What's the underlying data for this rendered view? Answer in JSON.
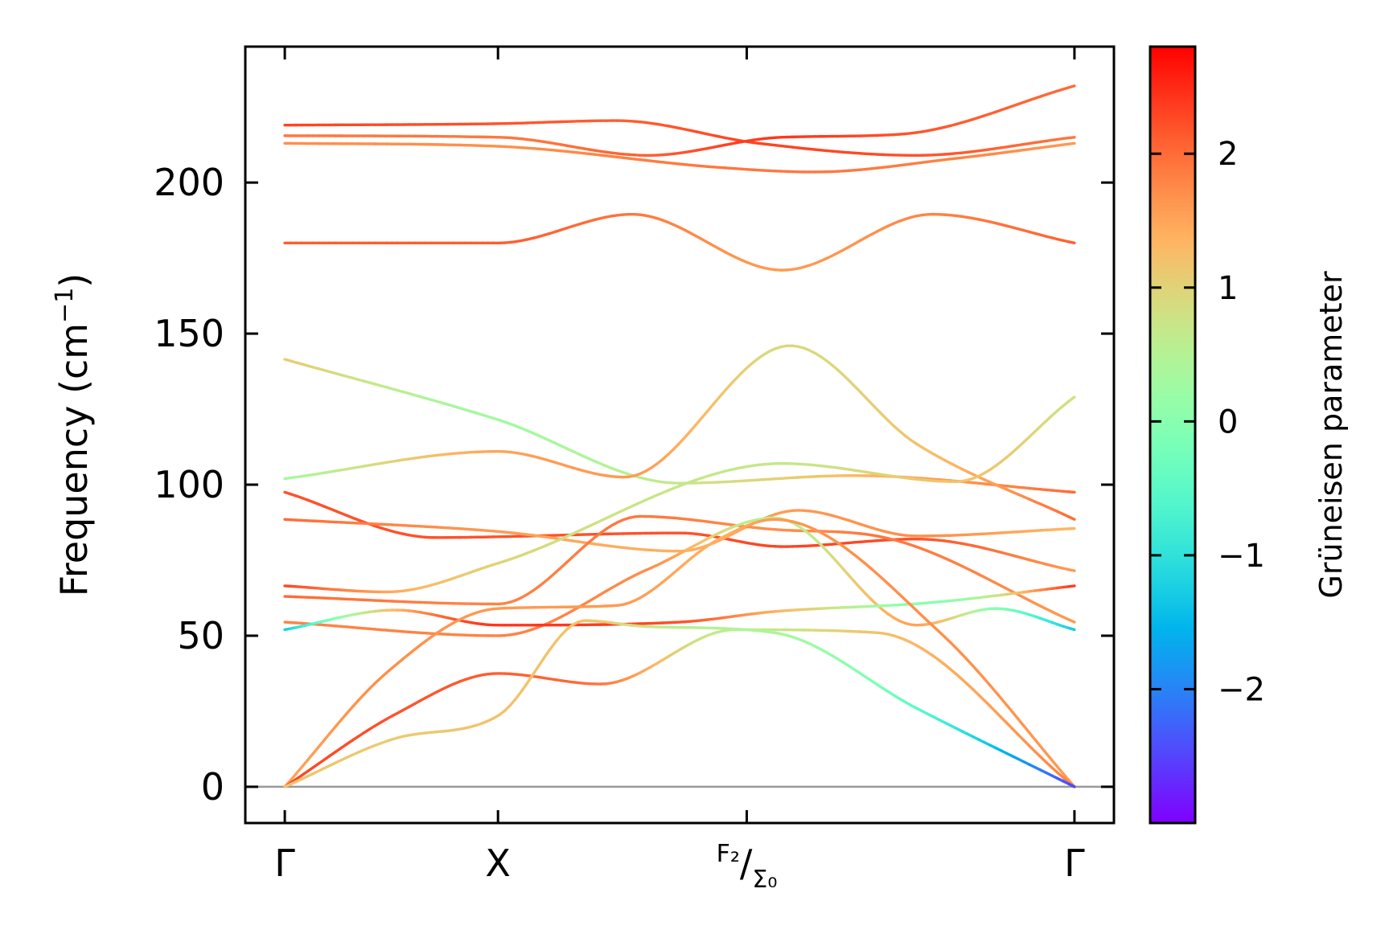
{
  "chart_data": {
    "type": "line",
    "ylabel_main": "Frequency (cm",
    "ylabel_sup": "−1",
    "ylabel_close": ")",
    "ylim": [
      -12,
      245
    ],
    "yticks": [
      0,
      50,
      100,
      150,
      200
    ],
    "ytick_labels": [
      "0",
      "50",
      "100",
      "150",
      "200"
    ],
    "xlim": [
      -0.05,
      1.05
    ],
    "high_symmetry_points": [
      {
        "position": 0.0,
        "label": "Γ",
        "sub": "",
        "sub2": ""
      },
      {
        "position": 0.27,
        "label": "X",
        "sub": "",
        "sub2": ""
      },
      {
        "position": 0.585,
        "label": "",
        "sub": "F₂",
        "sub2": "Σ₀",
        "slash": "/"
      },
      {
        "position": 1.0,
        "label": "Γ",
        "sub": "",
        "sub2": ""
      }
    ],
    "zero_line_color": "#999999",
    "grid": false,
    "colorbar": {
      "title": "Grüneisen parameter",
      "range": [
        -3.0,
        2.8
      ],
      "ticks": [
        -2,
        -1,
        0,
        1,
        2
      ],
      "tick_labels": [
        "−2",
        "−1",
        "0",
        "1",
        "2"
      ],
      "colormap": "rainbow"
    },
    "series": [
      {
        "points": [
          [
            0,
            219,
            2.3
          ],
          [
            0.27,
            219.5,
            2.2
          ],
          [
            0.42,
            220.5,
            2.1
          ],
          [
            0.6,
            213,
            2.3
          ],
          [
            0.8,
            209,
            2.2
          ],
          [
            1.0,
            215,
            1.9
          ]
        ]
      },
      {
        "points": [
          [
            0,
            215.5,
            1.9
          ],
          [
            0.27,
            215,
            1.9
          ],
          [
            0.46,
            209,
            2.1
          ],
          [
            0.63,
            215,
            2.4
          ],
          [
            0.78,
            216,
            2.2
          ],
          [
            1.0,
            232,
            2.0
          ]
        ]
      },
      {
        "points": [
          [
            0,
            213,
            1.7
          ],
          [
            0.27,
            212,
            1.7
          ],
          [
            0.55,
            205,
            1.9
          ],
          [
            0.67,
            203.5,
            1.9
          ],
          [
            0.85,
            208,
            1.8
          ],
          [
            1.0,
            213,
            1.6
          ]
        ]
      },
      {
        "points": [
          [
            0,
            180,
            2.1
          ],
          [
            0.27,
            180,
            2.1
          ],
          [
            0.44,
            189.5,
            1.9
          ],
          [
            0.63,
            171,
            1.6
          ],
          [
            0.82,
            189.5,
            1.8
          ],
          [
            1.0,
            180,
            2.1
          ]
        ]
      },
      {
        "points": [
          [
            0,
            141.5,
            1.1
          ],
          [
            0.27,
            121.5,
            0.3
          ],
          [
            0.5,
            100.5,
            0.7
          ],
          [
            0.72,
            103,
            1.3
          ],
          [
            1.0,
            97.5,
            2.0
          ]
        ]
      },
      {
        "points": [
          [
            0,
            102,
            0.3
          ],
          [
            0.27,
            111,
            1.5
          ],
          [
            0.43,
            102.5,
            1.6
          ],
          [
            0.64,
            146,
            0.9
          ],
          [
            0.8,
            113.5,
            1.2
          ],
          [
            1.0,
            88.5,
            2.0
          ]
        ]
      },
      {
        "points": [
          [
            0,
            97.5,
            2.2
          ],
          [
            0.19,
            82.5,
            2.2
          ],
          [
            0.5,
            84,
            2.2
          ],
          [
            0.63,
            79.5,
            2.3
          ],
          [
            0.8,
            82,
            2.2
          ],
          [
            1.0,
            71.5,
            1.6
          ]
        ]
      },
      {
        "points": [
          [
            0,
            88.5,
            2.0
          ],
          [
            0.27,
            84.5,
            1.6
          ],
          [
            0.5,
            78,
            1.4
          ],
          [
            0.65,
            91.5,
            1.6
          ],
          [
            0.8,
            83,
            1.7
          ],
          [
            1.0,
            85.5,
            1.3
          ]
        ]
      },
      {
        "points": [
          [
            0,
            66.5,
            2.3
          ],
          [
            0.13,
            64.5,
            1.5
          ],
          [
            0.27,
            74,
            1.0
          ],
          [
            0.63,
            107,
            0.7
          ],
          [
            0.85,
            101,
            1.2
          ],
          [
            1.0,
            129,
            0.8
          ]
        ]
      },
      {
        "points": [
          [
            0,
            63,
            2.0
          ],
          [
            0.27,
            60.5,
            1.8
          ],
          [
            0.45,
            89.5,
            1.9
          ],
          [
            0.63,
            85,
            1.7
          ],
          [
            0.75,
            83,
            1.9
          ],
          [
            1.0,
            54.5,
            1.6
          ]
        ]
      },
      {
        "points": [
          [
            0,
            54.5,
            1.8
          ],
          [
            0.27,
            50,
            1.8
          ],
          [
            0.46,
            72,
            1.7
          ],
          [
            0.62,
            89,
            0.5
          ],
          [
            0.8,
            53.5,
            1.5
          ],
          [
            0.9,
            59,
            0.0
          ],
          [
            1.0,
            52,
            -1.3
          ]
        ]
      },
      {
        "points": [
          [
            0,
            52,
            -1.3
          ],
          [
            0.14,
            58.5,
            1.3
          ],
          [
            0.27,
            53.5,
            2.4
          ],
          [
            0.5,
            54.5,
            2.2
          ],
          [
            0.62,
            58,
            1.4
          ],
          [
            0.82,
            61,
            0.0
          ],
          [
            1.0,
            66.5,
            2.4
          ]
        ]
      },
      {
        "points": [
          [
            0,
            0,
            1.5
          ],
          [
            0.13,
            38,
            1.7
          ],
          [
            0.27,
            59,
            1.6
          ],
          [
            0.42,
            60,
            1.6
          ],
          [
            0.55,
            82,
            1.4
          ],
          [
            0.62,
            88.5,
            1.6
          ],
          [
            0.83,
            51,
            1.7
          ],
          [
            1.0,
            0,
            1.6
          ]
        ]
      },
      {
        "points": [
          [
            0,
            0,
            2.3
          ],
          [
            0.14,
            24,
            2.2
          ],
          [
            0.27,
            37.5,
            2.1
          ],
          [
            0.4,
            34,
            1.9
          ],
          [
            0.57,
            52,
            0.6
          ],
          [
            0.75,
            51,
            1.2
          ],
          [
            1.0,
            0,
            1.8
          ]
        ]
      },
      {
        "points": [
          [
            0,
            0,
            1.2
          ],
          [
            0.14,
            16,
            1.1
          ],
          [
            0.27,
            23.5,
            1.2
          ],
          [
            0.38,
            55,
            1.2
          ],
          [
            0.46,
            53,
            0.7
          ],
          [
            0.62,
            51,
            0.4
          ],
          [
            0.8,
            26,
            -0.5
          ],
          [
            1.0,
            0,
            -2.5
          ]
        ]
      }
    ]
  }
}
